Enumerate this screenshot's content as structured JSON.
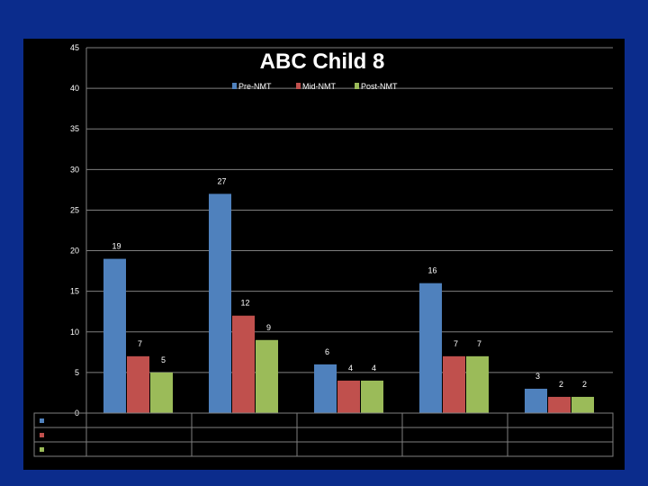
{
  "chart_data": {
    "type": "bar",
    "title": "ABC Child 8",
    "xlabel": "",
    "ylabel": "",
    "ylim": [
      0,
      45
    ],
    "yticks": [
      0,
      5,
      10,
      15,
      20,
      25,
      30,
      35,
      40,
      45
    ],
    "grid": true,
    "legend_position": "top",
    "categories": [
      "",
      "",
      "",
      "",
      ""
    ],
    "series": [
      {
        "name": "Pre-NMT",
        "color": "#4f81bd",
        "values": [
          19,
          27,
          6,
          16,
          3
        ]
      },
      {
        "name": "Mid-NMT",
        "color": "#c0504d",
        "values": [
          7,
          12,
          4,
          7,
          2
        ]
      },
      {
        "name": "Post-NMT",
        "color": "#9bbb59",
        "values": [
          5,
          9,
          4,
          7,
          2
        ]
      }
    ]
  },
  "colors": {
    "background": "#0b2c8c",
    "panel": "#000000",
    "gridline": "#7f7f7f",
    "text": "#ffffff"
  }
}
